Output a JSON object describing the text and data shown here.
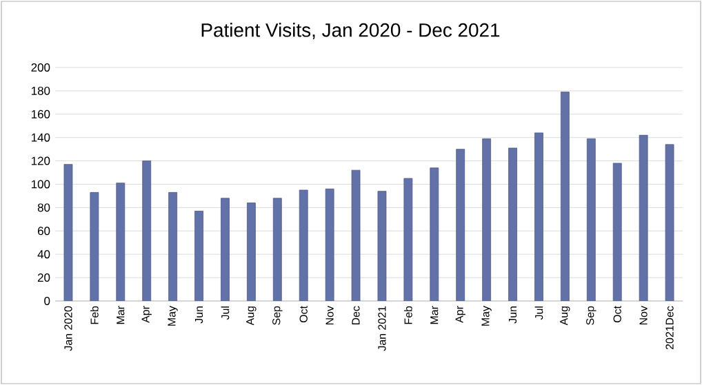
{
  "chart_data": {
    "type": "bar",
    "title": "Patient Visits, Jan 2020 - Dec 2021",
    "categories": [
      "Jan 2020",
      "Feb",
      "Mar",
      "Apr",
      "May",
      "Jun",
      "Jul",
      "Aug",
      "Sep",
      "Oct",
      "Nov",
      "Dec",
      "Jan 2021",
      "Feb",
      "Mar",
      "Apr",
      "May",
      "Jun",
      "Jul",
      "Aug",
      "Sep",
      "Oct",
      "Nov",
      "2021Dec"
    ],
    "values": [
      117,
      93,
      101,
      120,
      93,
      77,
      88,
      84,
      88,
      95,
      96,
      112,
      94,
      105,
      114,
      130,
      139,
      131,
      144,
      179,
      139,
      118,
      142,
      134
    ],
    "color": "#6272a8",
    "ylim": [
      0,
      200
    ],
    "yticks": [
      0,
      20,
      40,
      60,
      80,
      100,
      120,
      140,
      160,
      180,
      200
    ],
    "grid": "y"
  }
}
